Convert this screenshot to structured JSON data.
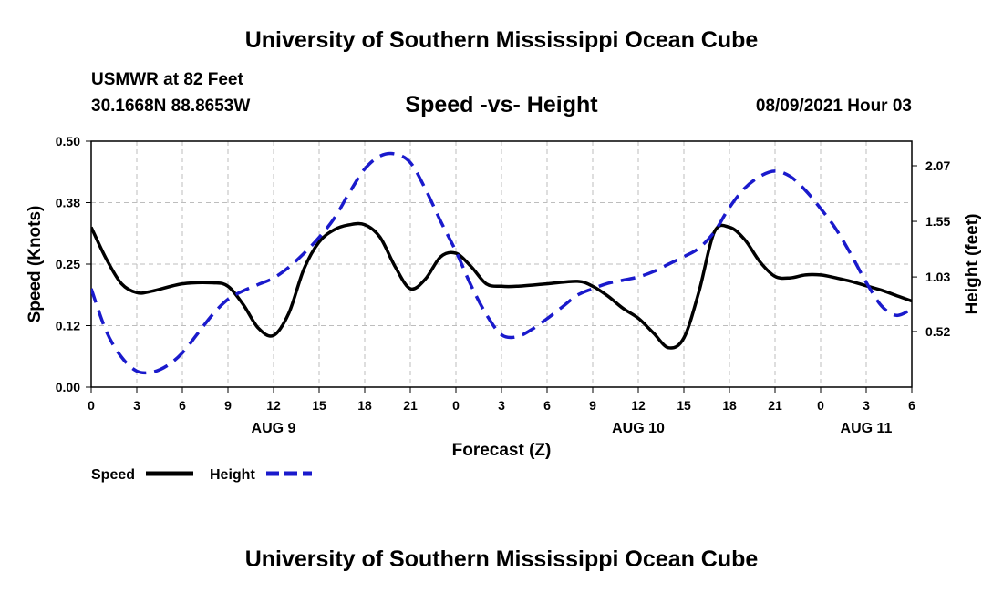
{
  "header": {
    "title": "University of Southern Mississippi Ocean Cube",
    "station": "USMWR at 82 Feet",
    "coords": "30.1668N  88.8653W",
    "subtitle": "Speed -vs- Height",
    "datetime": "08/09/2021 Hour 03"
  },
  "footer": {
    "title": "University of Southern Mississippi Ocean Cube"
  },
  "colors": {
    "speed": "#000000",
    "height": "#1a1acc",
    "grid": "#bdbdbd"
  },
  "chart_data": {
    "type": "line",
    "title": "Speed -vs- Height",
    "xlabel": "Forecast (Z)",
    "ylabel_left": "Speed (Knots)",
    "ylabel_right": "Height (feet)",
    "x_range": [
      0,
      54
    ],
    "x_tick_hours": [
      0,
      3,
      6,
      9,
      12,
      15,
      18,
      21,
      24,
      27,
      30,
      33,
      36,
      39,
      42,
      45,
      48,
      51,
      54
    ],
    "x_tick_labels": [
      "0",
      "3",
      "6",
      "9",
      "12",
      "15",
      "18",
      "21",
      "0",
      "3",
      "6",
      "9",
      "12",
      "15",
      "18",
      "21",
      "0",
      "3",
      "6"
    ],
    "day_labels": [
      {
        "hour": 12,
        "label": "AUG 9"
      },
      {
        "hour": 36,
        "label": "AUG 10"
      },
      {
        "hour": 51,
        "label": "AUG 11"
      }
    ],
    "y_left": {
      "range": [
        0,
        0.5
      ],
      "ticks": [
        0.0,
        0.125,
        0.25,
        0.375,
        0.5
      ],
      "labels": [
        "0.00",
        "0.12",
        "0.25",
        "0.38",
        "0.50"
      ]
    },
    "y_right": {
      "range": [
        0.0,
        2.3
      ],
      "ticks": [
        0.52,
        1.03,
        1.55,
        2.07
      ],
      "labels": [
        "0.52",
        "1.03",
        "1.55",
        "2.07"
      ]
    },
    "grid": true,
    "legend": {
      "position": "bottom-left",
      "items": [
        "Speed",
        "Height"
      ]
    },
    "series": [
      {
        "name": "Speed",
        "axis": "left",
        "style": "solid",
        "x": [
          0,
          1,
          2,
          3,
          4,
          6,
          8,
          9,
          10,
          11,
          12,
          13,
          14,
          15,
          16,
          17,
          18,
          19,
          20,
          21,
          22,
          23,
          24,
          25,
          26,
          27,
          28,
          30,
          32,
          33,
          34,
          35,
          36,
          37,
          38,
          39,
          40,
          41,
          42,
          43,
          44,
          45,
          46,
          47,
          48,
          49,
          50,
          51,
          52,
          53,
          54
        ],
        "values": [
          0.325,
          0.26,
          0.21,
          0.192,
          0.195,
          0.21,
          0.212,
          0.205,
          0.168,
          0.12,
          0.105,
          0.15,
          0.24,
          0.295,
          0.32,
          0.33,
          0.33,
          0.305,
          0.245,
          0.2,
          0.22,
          0.265,
          0.272,
          0.245,
          0.21,
          0.205,
          0.205,
          0.21,
          0.215,
          0.205,
          0.185,
          0.16,
          0.14,
          0.11,
          0.08,
          0.1,
          0.195,
          0.315,
          0.325,
          0.3,
          0.255,
          0.225,
          0.222,
          0.228,
          0.228,
          0.222,
          0.215,
          0.206,
          0.197,
          0.186,
          0.175
        ]
      },
      {
        "name": "Height",
        "axis": "right",
        "style": "dashed",
        "x": [
          0,
          1,
          2,
          3,
          4,
          5,
          6,
          7,
          8,
          9,
          10,
          11,
          12,
          13,
          14,
          15,
          16,
          17,
          18,
          19,
          20,
          21,
          22,
          23,
          24,
          25,
          26,
          27,
          28,
          29,
          30,
          31,
          32,
          33,
          34,
          35,
          36,
          37,
          38,
          39,
          40,
          41,
          42,
          43,
          44,
          45,
          46,
          47,
          48,
          49,
          50,
          51,
          52,
          53,
          54
        ],
        "values": [
          0.92,
          0.52,
          0.28,
          0.15,
          0.14,
          0.2,
          0.32,
          0.5,
          0.68,
          0.82,
          0.9,
          0.96,
          1.02,
          1.12,
          1.25,
          1.4,
          1.58,
          1.82,
          2.04,
          2.16,
          2.18,
          2.1,
          1.85,
          1.55,
          1.27,
          0.95,
          0.68,
          0.49,
          0.47,
          0.54,
          0.64,
          0.75,
          0.86,
          0.92,
          0.97,
          1.0,
          1.03,
          1.08,
          1.15,
          1.22,
          1.3,
          1.45,
          1.68,
          1.86,
          1.97,
          2.02,
          1.97,
          1.84,
          1.67,
          1.48,
          1.24,
          0.98,
          0.76,
          0.67,
          0.73
        ]
      }
    ]
  }
}
